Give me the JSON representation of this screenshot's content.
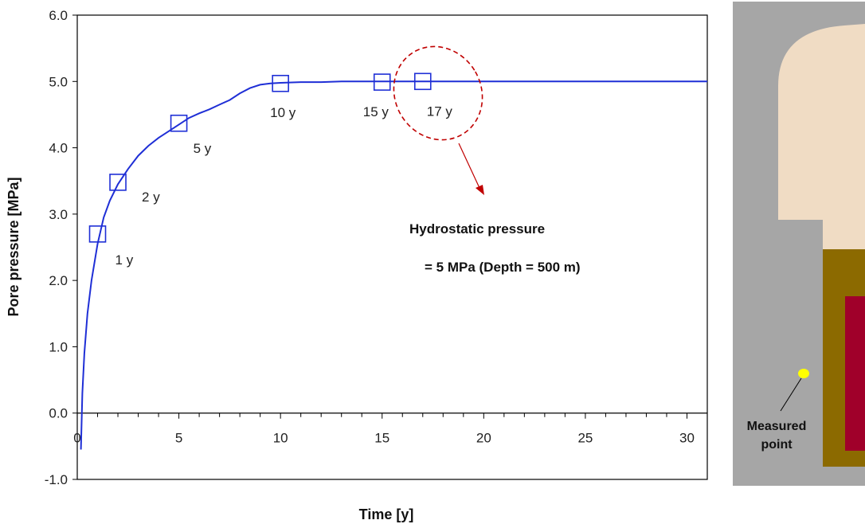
{
  "chart_data": {
    "type": "line",
    "xlabel": "Time [y]",
    "ylabel": "Pore pressure [MPa]",
    "xlim": [
      0,
      31
    ],
    "ylim": [
      -1.0,
      6.0
    ],
    "x_ticks": [
      "0",
      "5",
      "10",
      "15",
      "20",
      "25",
      "30"
    ],
    "y_ticks": [
      "-1.0",
      "0.0",
      "1.0",
      "2.0",
      "3.0",
      "4.0",
      "5.0",
      "6.0"
    ],
    "grid": false,
    "series": [
      {
        "name": "Pore pressure",
        "color": "#1f2fd6",
        "x": [
          0.18,
          0.25,
          0.35,
          0.5,
          0.7,
          1.0,
          1.3,
          1.6,
          2.0,
          2.5,
          3.0,
          3.5,
          4.0,
          4.5,
          5.0,
          5.5,
          6.0,
          6.5,
          7.0,
          7.5,
          8.0,
          8.5,
          9.0,
          9.5,
          10.0,
          11.0,
          12.0,
          13.0,
          14.0,
          15.0,
          16.0,
          17.0,
          20.0,
          25.0,
          31.0
        ],
        "y": [
          -0.55,
          0.3,
          0.9,
          1.5,
          2.0,
          2.55,
          2.95,
          3.2,
          3.45,
          3.68,
          3.88,
          4.03,
          4.15,
          4.25,
          4.35,
          4.45,
          4.52,
          4.58,
          4.65,
          4.72,
          4.82,
          4.9,
          4.95,
          4.97,
          4.98,
          4.99,
          4.99,
          5.0,
          5.0,
          5.0,
          5.0,
          5.0,
          5.0,
          5.0,
          5.0
        ]
      }
    ],
    "markers": [
      {
        "x": 1,
        "y": 2.7,
        "label": "1 y"
      },
      {
        "x": 2,
        "y": 3.48,
        "label": "2 y"
      },
      {
        "x": 5,
        "y": 4.37,
        "label": "5 y"
      },
      {
        "x": 10,
        "y": 4.97,
        "label": "10 y"
      },
      {
        "x": 15,
        "y": 4.99,
        "label": "15 y"
      },
      {
        "x": 17,
        "y": 5.0,
        "label": "17 y"
      }
    ],
    "annotation": {
      "line1": "Hydrostatic pressure",
      "line2": "= 5 MPa (Depth = 500 m)"
    }
  },
  "diagram": {
    "label_line1": "Measured",
    "label_line2": "point",
    "colors": {
      "background": "#a6a6a6",
      "rock": "#f0dcc4",
      "buffer": "#8c6a00",
      "canister": "#a0002a",
      "point": "#ffff00"
    }
  },
  "colors": {
    "series": "#1f2fd6",
    "ellipse": "#c00000",
    "axis": "#000000"
  }
}
